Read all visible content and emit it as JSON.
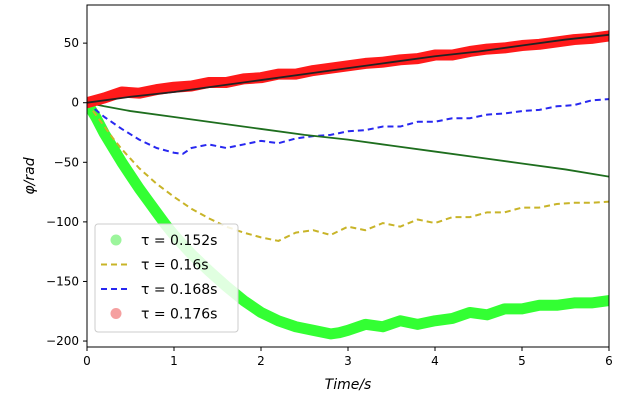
{
  "chart_data": {
    "type": "line",
    "xlabel": "Time/s",
    "ylabel": "φ/rad",
    "xlim": [
      0,
      6
    ],
    "ylim": [
      -205,
      82
    ],
    "xticks": [
      0,
      1,
      2,
      3,
      4,
      5,
      6
    ],
    "yticks": [
      50,
      0,
      -50,
      -100,
      -150,
      -200
    ],
    "legend_position": "lower-left",
    "series": [
      {
        "name": "τ = 0.152s",
        "style": "thick-marker-line",
        "color": "#33ff33",
        "x": [
          0,
          0.1,
          0.2,
          0.3,
          0.4,
          0.5,
          0.6,
          0.7,
          0.8,
          0.9,
          1.0,
          1.2,
          1.4,
          1.6,
          1.8,
          2.0,
          2.2,
          2.4,
          2.6,
          2.8,
          2.9,
          3.0,
          3.2,
          3.4,
          3.6,
          3.8,
          4.0,
          4.2,
          4.4,
          4.6,
          4.8,
          5.0,
          5.2,
          5.4,
          5.6,
          5.8,
          6.0
        ],
        "y": [
          0,
          -12,
          -26,
          -38,
          -50,
          -61,
          -72,
          -82,
          -92,
          -102,
          -111,
          -127,
          -141,
          -154,
          -166,
          -176,
          -183,
          -188,
          -191,
          -194,
          -193,
          -191,
          -186,
          -188,
          -183,
          -186,
          -183,
          -181,
          -176,
          -178,
          -173,
          -173,
          -170,
          -170,
          -168,
          -168,
          -166
        ]
      },
      {
        "name": "τ = 0.16s",
        "style": "dashed",
        "color": "#c8b428",
        "x": [
          0,
          0.1,
          0.2,
          0.3,
          0.4,
          0.5,
          0.6,
          0.8,
          1.0,
          1.2,
          1.4,
          1.6,
          1.8,
          2.0,
          2.2,
          2.4,
          2.6,
          2.8,
          3.0,
          3.2,
          3.4,
          3.6,
          3.8,
          4.0,
          4.2,
          4.4,
          4.6,
          4.8,
          5.0,
          5.2,
          5.4,
          5.6,
          5.8,
          6.0
        ],
        "y": [
          0,
          -10,
          -20,
          -30,
          -39,
          -47,
          -55,
          -68,
          -79,
          -89,
          -97,
          -104,
          -109,
          -113,
          -116,
          -109,
          -107,
          -111,
          -104,
          -107,
          -101,
          -104,
          -98,
          -101,
          -96,
          -96,
          -92,
          -92,
          -88,
          -88,
          -85,
          -84,
          -84,
          -83
        ]
      },
      {
        "name": "τ = 0.168s",
        "style": "dashed",
        "color": "#2828f0",
        "x": [
          0,
          0.2,
          0.4,
          0.6,
          0.8,
          1.0,
          1.1,
          1.2,
          1.4,
          1.6,
          1.8,
          2.0,
          2.2,
          2.4,
          2.6,
          2.8,
          3.0,
          3.2,
          3.4,
          3.6,
          3.8,
          4.0,
          4.2,
          4.4,
          4.6,
          4.8,
          5.0,
          5.2,
          5.4,
          5.6,
          5.8,
          6.0
        ],
        "y": [
          0,
          -12,
          -22,
          -31,
          -38,
          -42,
          -43,
          -38,
          -35,
          -38,
          -35,
          -32,
          -34,
          -30,
          -28,
          -27,
          -24,
          -23,
          -20,
          -20,
          -16,
          -16,
          -13,
          -13,
          -10,
          -9,
          -7,
          -6,
          -3,
          -2,
          2,
          3
        ]
      },
      {
        "name": "",
        "style": "solid",
        "color": "#1e6e1e",
        "x": [
          0,
          0.2,
          0.5,
          1.0,
          1.5,
          2.0,
          2.5,
          3.0,
          3.5,
          4.0,
          4.5,
          5.0,
          5.5,
          6.0
        ],
        "y": [
          0,
          -3,
          -7,
          -12,
          -17,
          -22,
          -27,
          -31,
          -36,
          -41,
          -46,
          -51,
          -56,
          -62
        ]
      },
      {
        "name": "τ = 0.176s",
        "style": "thick-marker-line",
        "color": "#ff1a1a",
        "x": [
          0,
          0.2,
          0.4,
          0.6,
          0.8,
          1.0,
          1.2,
          1.4,
          1.6,
          1.8,
          2.0,
          2.2,
          2.4,
          2.6,
          2.8,
          3.0,
          3.2,
          3.4,
          3.6,
          3.8,
          4.0,
          4.2,
          4.4,
          4.6,
          4.8,
          5.0,
          5.2,
          5.4,
          5.6,
          5.8,
          6.0
        ],
        "y": [
          0,
          4,
          9,
          8,
          11,
          13,
          14,
          17,
          17,
          20,
          21,
          24,
          24,
          27,
          29,
          31,
          33,
          34,
          36,
          37,
          40,
          40,
          43,
          45,
          46,
          48,
          49,
          51,
          53,
          54,
          56
        ]
      },
      {
        "name": "",
        "style": "solid",
        "color": "#222222",
        "x": [
          0,
          0.5,
          1.0,
          1.5,
          2.0,
          2.5,
          3.0,
          3.5,
          4.0,
          4.5,
          5.0,
          5.5,
          6.0
        ],
        "y": [
          0,
          5,
          9,
          14,
          19,
          24,
          29,
          34,
          39,
          43,
          48,
          53,
          57
        ]
      }
    ],
    "legend": [
      {
        "label": "τ = 0.152s",
        "kind": "marker",
        "color": "#9cf59c"
      },
      {
        "label": "τ = 0.16s",
        "kind": "dash",
        "color": "#c8b428"
      },
      {
        "label": "τ = 0.168s",
        "kind": "dash",
        "color": "#2828f0"
      },
      {
        "label": "τ = 0.176s",
        "kind": "marker",
        "color": "#f5a0a0"
      }
    ]
  }
}
